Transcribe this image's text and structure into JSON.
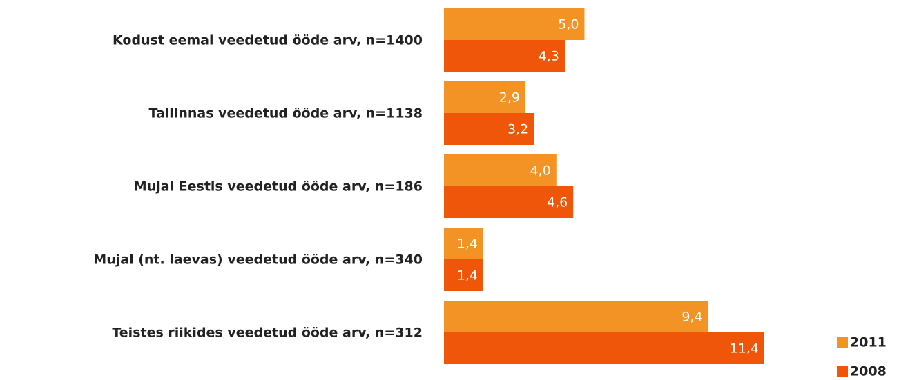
{
  "chart_data": {
    "type": "bar",
    "orientation": "horizontal",
    "categories": [
      "Kodust eemal veedetud ööde arv, n=1400",
      "Tallinnas veedetud ööde arv, n=1138",
      "Mujal Eestis veedetud ööde arv, n=186",
      "Mujal (nt. laevas) veedetud ööde arv, n=340",
      "Teistes riikides veedetud ööde arv, n=312"
    ],
    "series": [
      {
        "name": "2011",
        "color": "#f39325",
        "values": [
          5.0,
          2.9,
          4.0,
          1.4,
          9.4
        ],
        "value_labels": [
          "5,0",
          "2,9",
          "4,0",
          "1,4",
          "9,4"
        ]
      },
      {
        "name": "2008",
        "color": "#f0560a",
        "values": [
          4.3,
          3.2,
          4.6,
          1.4,
          11.4
        ],
        "value_labels": [
          "4,3",
          "3,2",
          "4,6",
          "1,4",
          "11,4"
        ]
      }
    ]
  }
}
